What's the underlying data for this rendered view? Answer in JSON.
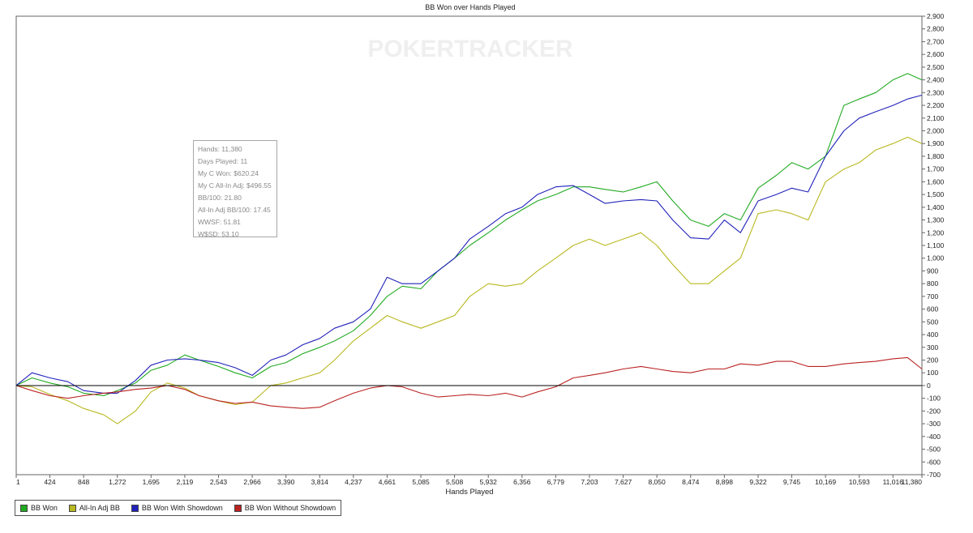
{
  "chart_data": {
    "type": "line",
    "title": "BB Won over Hands Played",
    "xlabel": "Hands Played",
    "ylabel": "",
    "watermark": "POKERTRACKER",
    "xlim": [
      1,
      11380
    ],
    "ylim": [
      -700,
      2900
    ],
    "x_ticks": [
      "1",
      "424",
      "848",
      "1,272",
      "1,695",
      "2,119",
      "2,543",
      "2,966",
      "3,390",
      "3,814",
      "4,237",
      "4,661",
      "5,085",
      "5,508",
      "5,932",
      "6,356",
      "6,779",
      "7,203",
      "7,627",
      "8,050",
      "8,474",
      "8,898",
      "9,322",
      "9,745",
      "10,169",
      "10,593",
      "11,016",
      "11,380"
    ],
    "y_ticks": [
      "2,900",
      "2,800",
      "2,700",
      "2,600",
      "2,500",
      "2,400",
      "2,300",
      "2,200",
      "2,100",
      "2,000",
      "1,900",
      "1,800",
      "1,700",
      "1,600",
      "1,500",
      "1,400",
      "1,300",
      "1,200",
      "1,100",
      "1,000",
      "900",
      "800",
      "700",
      "600",
      "500",
      "400",
      "300",
      "200",
      "100",
      "0",
      "-100",
      "-200",
      "-300",
      "-400",
      "-500",
      "-600",
      "-700"
    ],
    "grid": false,
    "legend_position": "bottom-left",
    "x": [
      0,
      200,
      424,
      650,
      848,
      1100,
      1272,
      1500,
      1695,
      1900,
      2119,
      2300,
      2543,
      2750,
      2966,
      3200,
      3390,
      3600,
      3814,
      4000,
      4237,
      4450,
      4661,
      4850,
      5085,
      5300,
      5508,
      5700,
      5932,
      6150,
      6356,
      6550,
      6779,
      7000,
      7203,
      7400,
      7627,
      7850,
      8050,
      8250,
      8474,
      8700,
      8898,
      9100,
      9322,
      9550,
      9745,
      9950,
      10169,
      10400,
      10593,
      10800,
      11016,
      11200,
      11380
    ],
    "series": [
      {
        "name": "BB Won",
        "color": "#22aa22",
        "values": [
          0,
          60,
          20,
          -10,
          -60,
          -80,
          -40,
          20,
          120,
          160,
          240,
          200,
          150,
          100,
          60,
          150,
          180,
          250,
          300,
          350,
          430,
          550,
          700,
          780,
          760,
          900,
          1000,
          1100,
          1200,
          1300,
          1380,
          1450,
          1500,
          1560,
          1560,
          1540,
          1520,
          1560,
          1600,
          1450,
          1300,
          1250,
          1350,
          1300,
          1550,
          1650,
          1750,
          1700,
          1800,
          2200,
          2250,
          2300,
          2400,
          2450,
          2400
        ]
      },
      {
        "name": "All-In Adj BB",
        "color": "#b8b820",
        "values": [
          0,
          -10,
          -70,
          -120,
          -180,
          -230,
          -300,
          -200,
          -50,
          20,
          -20,
          -80,
          -120,
          -150,
          -130,
          0,
          20,
          60,
          100,
          200,
          350,
          450,
          550,
          500,
          450,
          500,
          550,
          700,
          800,
          780,
          800,
          900,
          1000,
          1100,
          1150,
          1100,
          1150,
          1200,
          1100,
          950,
          800,
          800,
          900,
          1000,
          1350,
          1380,
          1350,
          1300,
          1600,
          1700,
          1750,
          1850,
          1900,
          1950,
          1900
        ]
      },
      {
        "name": "BB Won With Showdown",
        "color": "#2222bb",
        "values": [
          0,
          100,
          60,
          30,
          -40,
          -60,
          -60,
          40,
          160,
          200,
          210,
          200,
          180,
          140,
          80,
          200,
          240,
          320,
          370,
          450,
          500,
          600,
          850,
          800,
          800,
          900,
          1000,
          1150,
          1250,
          1350,
          1400,
          1500,
          1560,
          1570,
          1500,
          1430,
          1450,
          1460,
          1450,
          1300,
          1160,
          1150,
          1300,
          1200,
          1450,
          1500,
          1550,
          1520,
          1800,
          2000,
          2100,
          2150,
          2200,
          2250,
          2280
        ]
      },
      {
        "name": "BB Won Without Showdown",
        "color": "#bb2222",
        "values": [
          0,
          -40,
          -80,
          -100,
          -80,
          -60,
          -50,
          -30,
          -20,
          0,
          -30,
          -80,
          -120,
          -140,
          -130,
          -160,
          -170,
          -180,
          -170,
          -120,
          -60,
          -20,
          0,
          -10,
          -60,
          -90,
          -80,
          -70,
          -80,
          -60,
          -90,
          -50,
          -10,
          60,
          80,
          100,
          130,
          150,
          130,
          110,
          100,
          130,
          130,
          170,
          160,
          190,
          190,
          150,
          150,
          170,
          180,
          190,
          210,
          220,
          130
        ]
      }
    ]
  },
  "stats": {
    "hands": "Hands: 11,380",
    "days_played": "Days Played: 11",
    "won": "My C Won: $620.24",
    "allin_adj": "My C All-In Adj: $496.55",
    "bb100": "BB/100: 21.80",
    "allin_bb100": "All-In Adj BB/100: 17.45",
    "wwsf": "WWSF: 51.81",
    "wssd": "W$SD: 53.10"
  },
  "legend": {
    "items": [
      {
        "label": "BB Won",
        "color": "#22aa22"
      },
      {
        "label": "All-In Adj BB",
        "color": "#b8b820"
      },
      {
        "label": "BB Won With Showdown",
        "color": "#2222bb"
      },
      {
        "label": "BB Won Without Showdown",
        "color": "#bb2222"
      }
    ]
  }
}
